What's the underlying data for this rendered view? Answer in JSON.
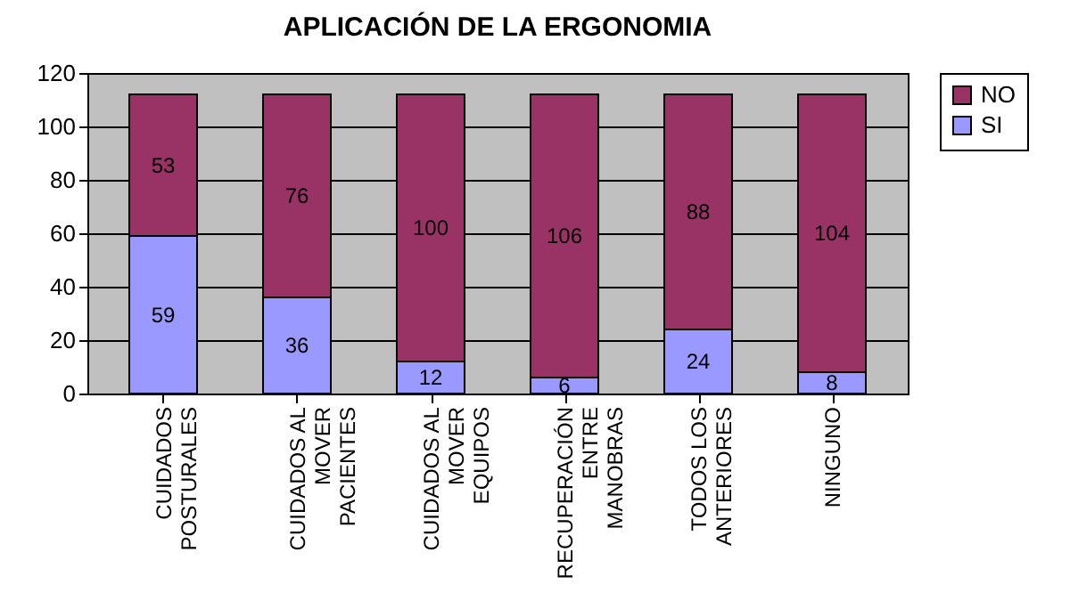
{
  "chart_data": {
    "type": "bar",
    "title": "APLICACIÓN DE LA ERGONOMIA",
    "categories": [
      "CUIDADOS POSTURALES",
      "CUIDADOS AL MOVER PACIENTES",
      "CUIDADOS AL MOVER EQUIPOS",
      "RECUPERACIÓN ENTRE MANOBRAS",
      "TODOS LOS ANTERIORES",
      "NINGUNO"
    ],
    "series": [
      {
        "name": "SI",
        "color": "#9999ff",
        "values": [
          59,
          36,
          12,
          6,
          24,
          8
        ]
      },
      {
        "name": "NO",
        "color": "#993366",
        "values": [
          53,
          76,
          100,
          106,
          88,
          104
        ]
      }
    ],
    "stacked": true,
    "ylim": [
      0,
      120
    ],
    "yticks": [
      0,
      20,
      40,
      60,
      80,
      100,
      120
    ],
    "grid": "y",
    "legend": "right",
    "data_labels": true
  }
}
